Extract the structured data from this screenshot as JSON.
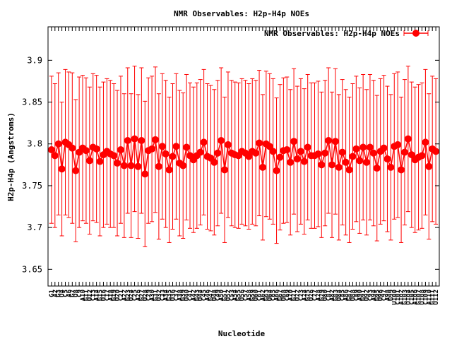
{
  "chart_data": {
    "type": "line",
    "title": "NMR Observables: H2p-H4p NOEs",
    "xlabel": "Nucleotide",
    "ylabel": "H2p-H4p (Angstroms)",
    "ylim": [
      3.63,
      3.94
    ],
    "yticks": [
      3.65,
      3.7,
      3.75,
      3.8,
      3.85,
      3.9
    ],
    "legend": {
      "label": "NMR Observables: H2p-H4p NOEs",
      "position": "top-right"
    },
    "color": "#ff0000",
    "x_first": 1,
    "x_last": 112,
    "x_labels": [
      "G1",
      "A2",
      "G3",
      "U4",
      "C5",
      "A6",
      "G7",
      "U8",
      "C9",
      "A10",
      "G11",
      "U12",
      "C13",
      "A14",
      "G15",
      "U16",
      "C17",
      "A18",
      "G19",
      "U20",
      "C21",
      "A22",
      "G23",
      "U24",
      "C25",
      "A26",
      "G27",
      "U28",
      "C29",
      "A30",
      "G31",
      "U32",
      "C33",
      "A34",
      "G35",
      "U36",
      "C37",
      "A38",
      "G39",
      "U40",
      "C41",
      "A42",
      "G43",
      "U44",
      "C45",
      "A46",
      "G47",
      "U48",
      "C49",
      "A50",
      "G51",
      "U52",
      "C53",
      "A54",
      "G55",
      "U56",
      "C57",
      "A58",
      "G59",
      "U60",
      "C61",
      "A62",
      "G63",
      "U64",
      "C65",
      "A66",
      "G67",
      "U68",
      "C69",
      "A70",
      "G71",
      "U72",
      "C73",
      "A74",
      "G75",
      "U76",
      "C77",
      "A78",
      "G79",
      "U80",
      "C81",
      "A82",
      "G83",
      "U84",
      "C85",
      "A86",
      "G87",
      "U88",
      "C89",
      "A90",
      "G91",
      "U92",
      "C93",
      "A94",
      "G95",
      "U96",
      "C97",
      "A98",
      "G99",
      "U100",
      "C101",
      "A102",
      "G103",
      "U104",
      "C105",
      "A106",
      "G107",
      "U108",
      "C109",
      "A110",
      "G111",
      "U112"
    ],
    "series": [
      {
        "mean": [
          3.793,
          3.786,
          3.8,
          3.77,
          3.802,
          3.799,
          3.795,
          3.768,
          3.79,
          3.795,
          3.792,
          3.78,
          3.796,
          3.794,
          3.779,
          3.787,
          3.791,
          3.788,
          3.786,
          3.777,
          3.793,
          3.774,
          3.804,
          3.774,
          3.806,
          3.773,
          3.804,
          3.764,
          3.792,
          3.794,
          3.805,
          3.773,
          3.797,
          3.788,
          3.769,
          3.785,
          3.797,
          3.777,
          3.774,
          3.796,
          3.786,
          3.781,
          3.786,
          3.79,
          3.802,
          3.785,
          3.783,
          3.778,
          3.789,
          3.804,
          3.769,
          3.799,
          3.789,
          3.787,
          3.786,
          3.791,
          3.789,
          3.785,
          3.791,
          3.789,
          3.801,
          3.772,
          3.8,
          3.797,
          3.791,
          3.768,
          3.784,
          3.792,
          3.793,
          3.778,
          3.803,
          3.782,
          3.791,
          3.779,
          3.796,
          3.786,
          3.786,
          3.788,
          3.775,
          3.789,
          3.804,
          3.775,
          3.803,
          3.772,
          3.79,
          3.778,
          3.769,
          3.785,
          3.794,
          3.78,
          3.796,
          3.778,
          3.796,
          3.789,
          3.771,
          3.791,
          3.795,
          3.782,
          3.772,
          3.797,
          3.799,
          3.769,
          3.79,
          3.806,
          3.787,
          3.781,
          3.784,
          3.786,
          3.802,
          3.773,
          3.794,
          3.791
        ],
        "lower": [
          3.705,
          3.7,
          3.715,
          3.69,
          3.715,
          3.712,
          3.705,
          3.683,
          3.7,
          3.708,
          3.705,
          3.692,
          3.708,
          3.706,
          3.69,
          3.7,
          3.704,
          3.7,
          3.7,
          3.69,
          3.705,
          3.688,
          3.717,
          3.688,
          3.719,
          3.687,
          3.717,
          3.677,
          3.705,
          3.707,
          3.718,
          3.686,
          3.71,
          3.7,
          3.682,
          3.698,
          3.71,
          3.69,
          3.687,
          3.709,
          3.699,
          3.694,
          3.699,
          3.703,
          3.715,
          3.698,
          3.696,
          3.691,
          3.702,
          3.717,
          3.682,
          3.712,
          3.702,
          3.7,
          3.699,
          3.704,
          3.702,
          3.698,
          3.704,
          3.702,
          3.714,
          3.685,
          3.713,
          3.71,
          3.704,
          3.681,
          3.697,
          3.705,
          3.706,
          3.691,
          3.716,
          3.695,
          3.704,
          3.692,
          3.709,
          3.699,
          3.699,
          3.701,
          3.688,
          3.702,
          3.717,
          3.688,
          3.716,
          3.685,
          3.703,
          3.691,
          3.682,
          3.698,
          3.707,
          3.693,
          3.709,
          3.691,
          3.709,
          3.702,
          3.684,
          3.704,
          3.708,
          3.695,
          3.685,
          3.71,
          3.712,
          3.682,
          3.703,
          3.719,
          3.7,
          3.694,
          3.697,
          3.699,
          3.715,
          3.686,
          3.707,
          3.704
        ],
        "upper": [
          3.881,
          3.872,
          3.885,
          3.85,
          3.889,
          3.886,
          3.885,
          3.853,
          3.88,
          3.882,
          3.879,
          3.868,
          3.884,
          3.882,
          3.868,
          3.874,
          3.878,
          3.876,
          3.872,
          3.864,
          3.881,
          3.86,
          3.891,
          3.86,
          3.893,
          3.859,
          3.891,
          3.851,
          3.879,
          3.881,
          3.892,
          3.86,
          3.884,
          3.876,
          3.856,
          3.872,
          3.884,
          3.864,
          3.861,
          3.883,
          3.873,
          3.868,
          3.873,
          3.877,
          3.889,
          3.872,
          3.87,
          3.865,
          3.876,
          3.891,
          3.856,
          3.886,
          3.876,
          3.874,
          3.873,
          3.878,
          3.876,
          3.872,
          3.878,
          3.876,
          3.888,
          3.859,
          3.887,
          3.884,
          3.878,
          3.855,
          3.871,
          3.879,
          3.88,
          3.865,
          3.89,
          3.869,
          3.878,
          3.866,
          3.883,
          3.873,
          3.873,
          3.875,
          3.862,
          3.876,
          3.891,
          3.862,
          3.89,
          3.859,
          3.877,
          3.865,
          3.856,
          3.872,
          3.881,
          3.867,
          3.883,
          3.865,
          3.883,
          3.876,
          3.858,
          3.878,
          3.882,
          3.869,
          3.859,
          3.884,
          3.886,
          3.856,
          3.877,
          3.893,
          3.874,
          3.868,
          3.871,
          3.873,
          3.889,
          3.86,
          3.881,
          3.878
        ]
      }
    ]
  }
}
